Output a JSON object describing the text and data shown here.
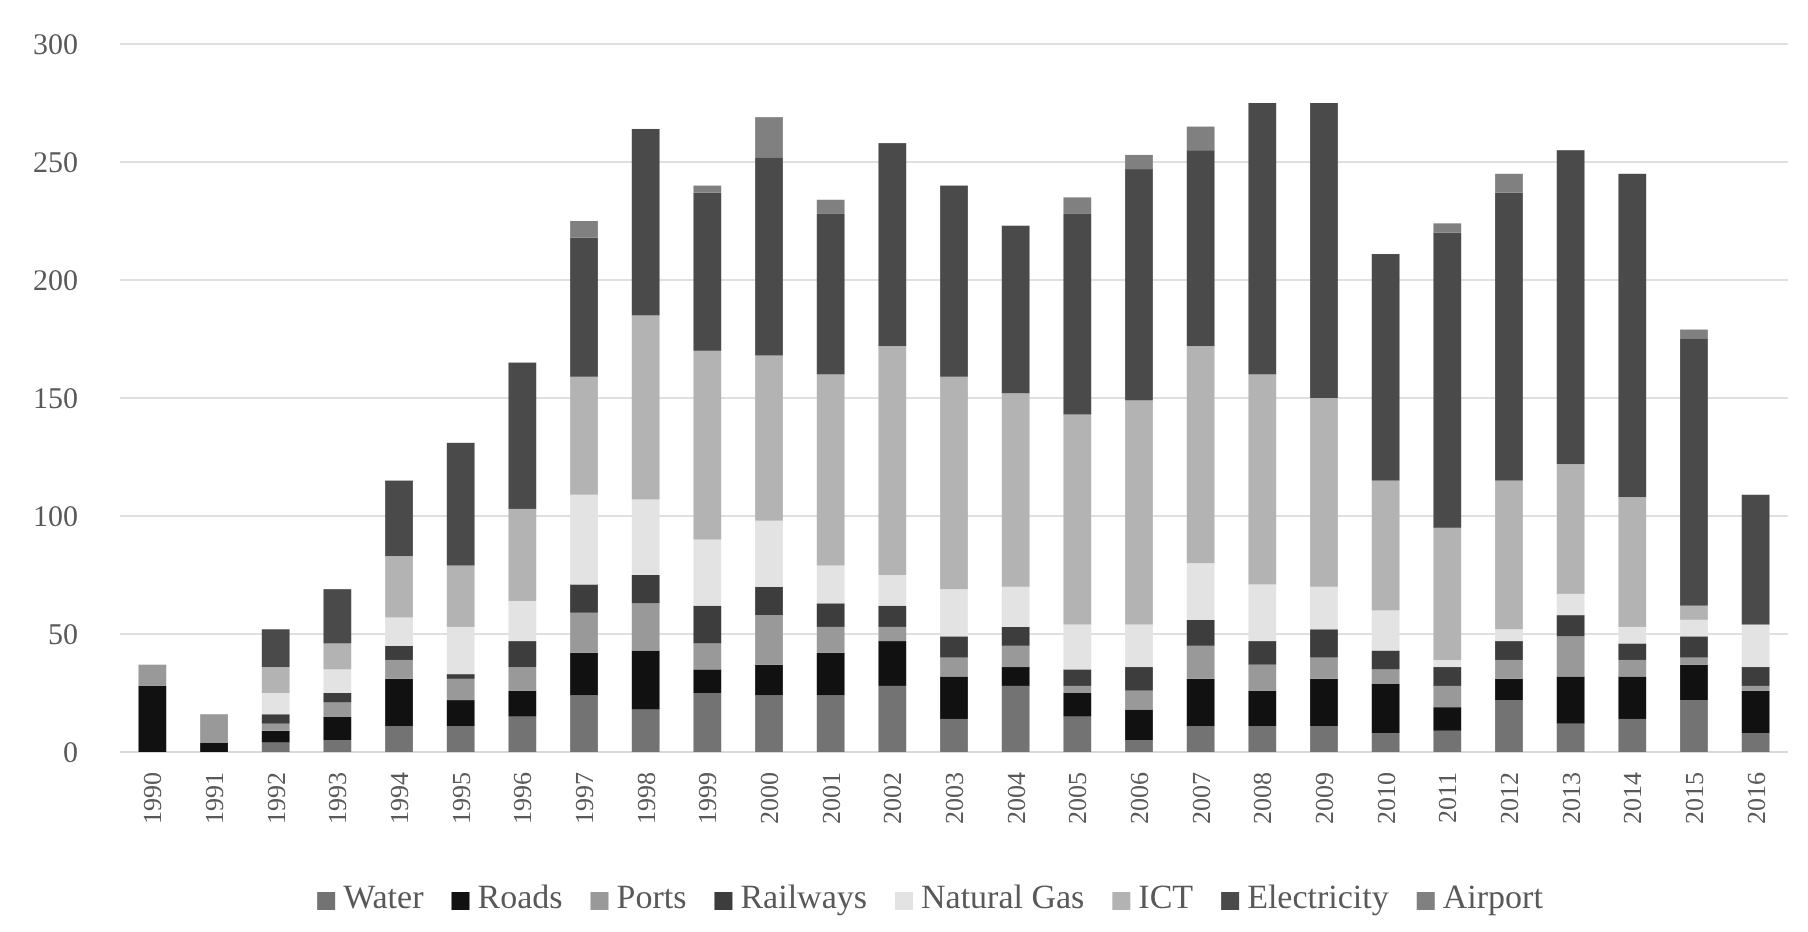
{
  "chart_data": {
    "type": "bar",
    "stacked": true,
    "categories": [
      "1990",
      "1991",
      "1992",
      "1993",
      "1994",
      "1995",
      "1996",
      "1997",
      "1998",
      "1999",
      "2000",
      "2001",
      "2002",
      "2003",
      "2004",
      "2005",
      "2006",
      "2007",
      "2008",
      "2009",
      "2010",
      "2011",
      "2012",
      "2013",
      "2014",
      "2015",
      "2016"
    ],
    "series": [
      {
        "name": "Water",
        "color": "#737373",
        "values": [
          0,
          0,
          4,
          5,
          11,
          11,
          15,
          24,
          18,
          25,
          24,
          24,
          28,
          14,
          28,
          15,
          5,
          11,
          11,
          11,
          8,
          9,
          22,
          12,
          14,
          22,
          8
        ]
      },
      {
        "name": "Roads",
        "color": "#111111",
        "values": [
          28,
          4,
          5,
          10,
          20,
          11,
          11,
          18,
          25,
          10,
          13,
          18,
          19,
          18,
          8,
          10,
          13,
          20,
          15,
          20,
          21,
          10,
          9,
          20,
          18,
          15,
          18
        ]
      },
      {
        "name": "Ports",
        "color": "#999999",
        "values": [
          9,
          12,
          3,
          6,
          8,
          9,
          10,
          17,
          20,
          11,
          21,
          11,
          6,
          8,
          9,
          3,
          8,
          14,
          11,
          9,
          6,
          9,
          8,
          17,
          7,
          3,
          2
        ]
      },
      {
        "name": "Railways",
        "color": "#3d3d3d",
        "values": [
          0,
          0,
          4,
          4,
          6,
          2,
          11,
          12,
          12,
          16,
          12,
          10,
          9,
          9,
          8,
          7,
          10,
          11,
          10,
          12,
          8,
          8,
          8,
          9,
          7,
          9,
          8
        ]
      },
      {
        "name": "Natural Gas",
        "color": "#e3e3e3",
        "values": [
          0,
          0,
          9,
          10,
          12,
          20,
          17,
          38,
          32,
          28,
          28,
          16,
          13,
          20,
          17,
          19,
          18,
          24,
          24,
          18,
          17,
          3,
          5,
          9,
          7,
          7,
          18
        ]
      },
      {
        "name": "ICT",
        "color": "#b3b3b3",
        "values": [
          0,
          0,
          11,
          11,
          26,
          26,
          39,
          50,
          78,
          80,
          70,
          81,
          97,
          90,
          82,
          89,
          95,
          92,
          89,
          80,
          55,
          56,
          63,
          55,
          55,
          6,
          0
        ]
      },
      {
        "name": "Electricity",
        "color": "#4a4a4a",
        "values": [
          0,
          0,
          16,
          23,
          32,
          52,
          62,
          59,
          79,
          67,
          84,
          68,
          86,
          81,
          71,
          85,
          98,
          83,
          115,
          125,
          96,
          125,
          122,
          133,
          137,
          113,
          55
        ]
      },
      {
        "name": "Airport",
        "color": "#808080",
        "values": [
          0,
          0,
          0,
          0,
          0,
          0,
          0,
          7,
          0,
          3,
          17,
          6,
          0,
          0,
          0,
          7,
          6,
          10,
          0,
          0,
          0,
          4,
          8,
          0,
          0,
          4,
          0
        ]
      }
    ],
    "ylim": [
      0,
      300
    ],
    "yticks": [
      0,
      50,
      100,
      150,
      200,
      250,
      300
    ],
    "grid": "y",
    "legend": "bottom"
  }
}
